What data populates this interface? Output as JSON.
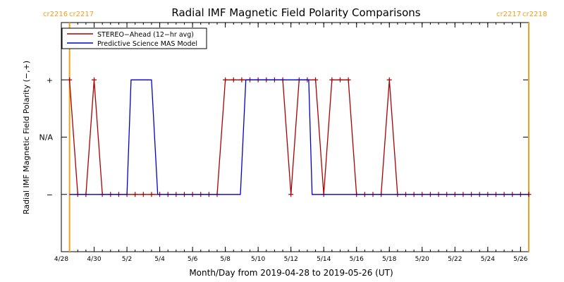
{
  "chart_data": {
    "type": "line",
    "title": "Radial IMF Magnetic Field Polarity Comparisons",
    "xlabel": "Month/Day from 2019-04-28 to 2019-05-26 (UT)",
    "ylabel": "Radial IMF Magnetic Field Polarity (−,+)",
    "x_unit": "day",
    "x_range": [
      "2019-04-28",
      "2019-05-26T12:00"
    ],
    "x_ticks": [
      {
        "x": "2019-04-28",
        "label": "4/28"
      },
      {
        "x": "2019-04-30",
        "label": "4/30"
      },
      {
        "x": "2019-05-02",
        "label": "5/2"
      },
      {
        "x": "2019-05-04",
        "label": "5/4"
      },
      {
        "x": "2019-05-06",
        "label": "5/6"
      },
      {
        "x": "2019-05-08",
        "label": "5/8"
      },
      {
        "x": "2019-05-10",
        "label": "5/10"
      },
      {
        "x": "2019-05-12",
        "label": "5/12"
      },
      {
        "x": "2019-05-14",
        "label": "5/14"
      },
      {
        "x": "2019-05-16",
        "label": "5/16"
      },
      {
        "x": "2019-05-18",
        "label": "5/18"
      },
      {
        "x": "2019-05-20",
        "label": "5/20"
      },
      {
        "x": "2019-05-22",
        "label": "5/22"
      },
      {
        "x": "2019-05-24",
        "label": "5/24"
      },
      {
        "x": "2019-05-26",
        "label": "5/26"
      }
    ],
    "y_ticks": [
      {
        "y": 1,
        "label": "+"
      },
      {
        "y": 0,
        "label": "N/A"
      },
      {
        "y": -1,
        "label": "−"
      }
    ],
    "ylim": [
      -2.0,
      2.0
    ],
    "legend": {
      "position": "top-left"
    },
    "markers": [
      {
        "x": "2019-04-28T12:00",
        "labels": [
          "cr2216",
          "cr2217"
        ],
        "side": "left",
        "color": "#f0a020"
      },
      {
        "x": "2019-05-26T12:00",
        "labels": [
          "cr2217",
          "cr2218"
        ],
        "side": "right",
        "color": "#f0a020"
      }
    ],
    "series": [
      {
        "name": "STEREO−Ahead (12−hr avg)",
        "color": "#aa0000",
        "marker": "+",
        "x": [
          "2019-04-28T12:00",
          "2019-04-29",
          "2019-04-29T12:00",
          "2019-04-30",
          "2019-04-30T12:00",
          "2019-05-01",
          "2019-05-01T12:00",
          "2019-05-02",
          "2019-05-02T12:00",
          "2019-05-03",
          "2019-05-03T12:00",
          "2019-05-04",
          "2019-05-04T12:00",
          "2019-05-05",
          "2019-05-05T12:00",
          "2019-05-06",
          "2019-05-06T12:00",
          "2019-05-07",
          "2019-05-07T12:00",
          "2019-05-08",
          "2019-05-08T12:00",
          "2019-05-09",
          "2019-05-09T12:00",
          "2019-05-10",
          "2019-05-10T12:00",
          "2019-05-11",
          "2019-05-11T12:00",
          "2019-05-12",
          "2019-05-12T12:00",
          "2019-05-13",
          "2019-05-13T12:00",
          "2019-05-14",
          "2019-05-14T12:00",
          "2019-05-15",
          "2019-05-15T12:00",
          "2019-05-16",
          "2019-05-16T12:00",
          "2019-05-17",
          "2019-05-17T12:00",
          "2019-05-18",
          "2019-05-18T12:00",
          "2019-05-19",
          "2019-05-19T12:00",
          "2019-05-20",
          "2019-05-20T12:00",
          "2019-05-21",
          "2019-05-21T12:00",
          "2019-05-22",
          "2019-05-22T12:00",
          "2019-05-23",
          "2019-05-23T12:00",
          "2019-05-24",
          "2019-05-24T12:00",
          "2019-05-25",
          "2019-05-25T12:00",
          "2019-05-26",
          "2019-05-26T12:00"
        ],
        "y": [
          1,
          -1,
          -1,
          1,
          -1,
          -1,
          -1,
          -1,
          -1,
          -1,
          -1,
          -1,
          -1,
          -1,
          -1,
          -1,
          -1,
          -1,
          -1,
          1,
          1,
          1,
          1,
          1,
          1,
          1,
          1,
          -1,
          1,
          1,
          1,
          -1,
          1,
          1,
          1,
          -1,
          -1,
          -1,
          -1,
          1,
          -1,
          -1,
          -1,
          -1,
          -1,
          -1,
          -1,
          -1,
          -1,
          -1,
          -1,
          -1,
          -1,
          -1,
          -1,
          -1,
          -1
        ]
      },
      {
        "name": "Predictive Science MAS Model",
        "color": "#0000cc",
        "x": [
          "2019-04-28T12:00",
          "2019-05-02",
          "2019-05-02T06:00",
          "2019-05-03T12:00",
          "2019-05-03T21:00",
          "2019-05-08T22:00",
          "2019-05-09T06:00",
          "2019-05-13T02:00",
          "2019-05-13T07:00",
          "2019-05-26T12:00"
        ],
        "y": [
          -1,
          -1,
          1,
          1,
          -1,
          -1,
          1,
          1,
          -1,
          -1
        ]
      }
    ]
  }
}
